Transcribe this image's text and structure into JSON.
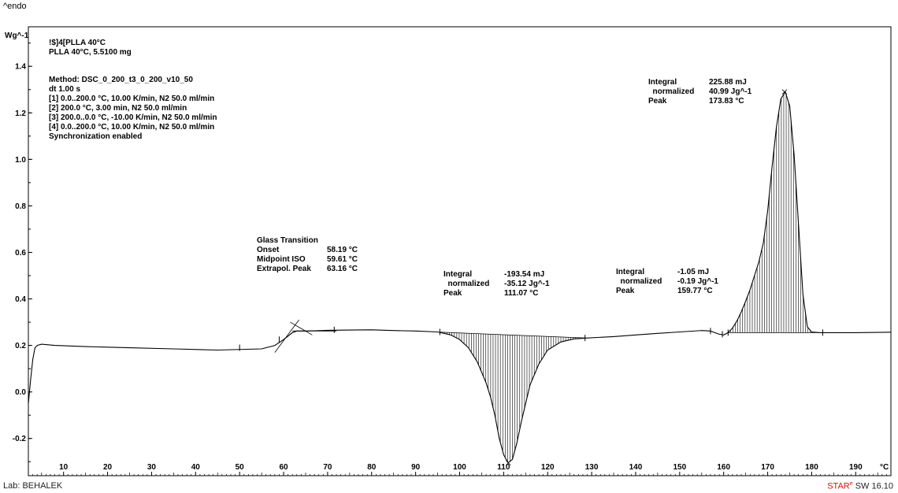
{
  "header": {
    "endo_label": "^endo"
  },
  "footer": {
    "lab": "Lab: BEHALEK",
    "brand": "STAR",
    "brand_mark": "e",
    "version": " SW 16.10"
  },
  "chart_data": {
    "type": "line",
    "xlabel": "°C",
    "ylabel": "Wg^-1",
    "xlim": [
      2,
      198
    ],
    "ylim": [
      -0.36,
      1.57
    ],
    "x_ticks": [
      10,
      20,
      30,
      40,
      50,
      60,
      70,
      80,
      90,
      100,
      110,
      120,
      130,
      140,
      150,
      160,
      170,
      180,
      190
    ],
    "y_ticks": [
      -0.2,
      0.0,
      0.2,
      0.4,
      0.6,
      0.8,
      1.0,
      1.2,
      1.4
    ],
    "y_tick_labels": [
      "-0.2",
      "0.0",
      "0.2",
      "0.4",
      "0.6",
      "0.8",
      "1.0",
      "1.2",
      "1.4"
    ],
    "grid": false,
    "curve_color": "#000000",
    "series": [
      {
        "x": [
          2.0,
          2.5,
          3.0,
          3.5,
          4.0,
          5,
          8,
          15,
          25,
          35,
          45,
          55,
          58,
          60,
          61,
          62,
          63,
          64,
          65,
          67,
          70,
          75,
          80,
          85,
          90,
          95,
          98,
          100,
          102,
          104,
          106,
          107,
          108,
          109,
          110,
          111,
          112,
          113,
          114,
          115,
          116,
          118,
          120,
          123,
          126,
          129,
          135,
          140,
          145,
          150,
          155,
          157,
          158,
          159,
          160,
          161,
          162,
          163,
          164,
          165,
          166,
          167,
          168,
          169,
          170,
          171,
          172,
          173,
          174,
          175,
          176,
          177,
          178,
          179,
          180,
          182,
          185,
          190,
          198
        ],
        "y": [
          -0.05,
          0.05,
          0.14,
          0.19,
          0.2,
          0.205,
          0.2,
          0.195,
          0.19,
          0.185,
          0.18,
          0.185,
          0.2,
          0.225,
          0.24,
          0.255,
          0.262,
          0.262,
          0.262,
          0.263,
          0.265,
          0.266,
          0.267,
          0.264,
          0.262,
          0.258,
          0.245,
          0.225,
          0.19,
          0.13,
          0.04,
          -0.02,
          -0.1,
          -0.2,
          -0.27,
          -0.305,
          -0.29,
          -0.22,
          -0.13,
          -0.05,
          0.03,
          0.12,
          0.18,
          0.215,
          0.228,
          0.232,
          0.238,
          0.245,
          0.252,
          0.258,
          0.264,
          0.262,
          0.255,
          0.248,
          0.245,
          0.255,
          0.275,
          0.305,
          0.345,
          0.39,
          0.44,
          0.5,
          0.56,
          0.64,
          0.78,
          0.97,
          1.14,
          1.26,
          1.29,
          1.23,
          1.02,
          0.72,
          0.42,
          0.28,
          0.258,
          0.255,
          0.255,
          0.255,
          0.257
        ]
      }
    ],
    "shaded_regions": [
      {
        "from": 95.5,
        "to": 128.5,
        "baseline": [
          0.257,
          0.232
        ]
      },
      {
        "from": 161,
        "to": 182.5,
        "baseline": [
          0.255,
          0.255
        ]
      }
    ],
    "tick_marks": [
      {
        "x": 50,
        "y": 0.19
      },
      {
        "x": 59,
        "y": 0.225
      },
      {
        "x": 71.5,
        "y": 0.267
      },
      {
        "x": 95.5,
        "y": 0.258
      },
      {
        "x": 128.5,
        "y": 0.232
      },
      {
        "x": 157,
        "y": 0.262
      },
      {
        "x": 159.7,
        "y": 0.248
      },
      {
        "x": 161,
        "y": 0.255
      },
      {
        "x": 182.5,
        "y": 0.255
      }
    ],
    "peak_marks": [
      {
        "x": 111.07,
        "y": -0.305
      },
      {
        "x": 173.83,
        "y": 1.29
      }
    ],
    "glass_transition_lines": [
      {
        "x1": 58,
        "y1": 0.17,
        "x2": 63.5,
        "y2": 0.31
      },
      {
        "x1": 61.5,
        "y1": 0.3,
        "x2": 66.5,
        "y2": 0.245
      },
      {
        "x1": 62,
        "y1": 0.262,
        "x2": 72,
        "y2": 0.262
      }
    ],
    "annotations": {
      "sample_block": [
        "!$]4[PLLA 40°C",
        "PLLA 40°C, 5.5100 mg"
      ],
      "method_block": [
        "Method: DSC_0_200_t3_0_200_v10_50",
        "dt 1.00 s",
        "[1] 0.0..200.0 °C, 10.00 K/min, N2 50.0 ml/min",
        "[2] 200.0 °C, 3.00 min, N2 50.0 ml/min",
        "[3] 200.0..0.0 °C, -10.00 K/min, N2 50.0 ml/min",
        "[4] 0.0..200.0 °C, 10.00 K/min, N2 50.0 ml/min",
        "Synchronization enabled"
      ],
      "glass_transition": {
        "title": "Glass Transition",
        "rows": [
          {
            "label": "Onset",
            "value": "58.19 °C"
          },
          {
            "label": "Midpoint ISO",
            "value": "59.61 °C"
          },
          {
            "label": "Extrapol. Peak",
            "value": "63.16 °C"
          }
        ]
      },
      "integral_cold": [
        {
          "label": "Integral",
          "value": "-193.54 mJ"
        },
        {
          "label": "  normalized",
          "value": "-35.12 Jg^-1"
        },
        {
          "label": "Peak",
          "value": "111.07 °C"
        }
      ],
      "integral_small": [
        {
          "label": "Integral",
          "value": "-1.05 mJ"
        },
        {
          "label": "  normalized",
          "value": "-0.19 Jg^-1"
        },
        {
          "label": "Peak",
          "value": "159.77 °C"
        }
      ],
      "integral_melt": [
        {
          "label": "Integral",
          "value": "225.88 mJ"
        },
        {
          "label": "  normalized",
          "value": "40.99 Jg^-1"
        },
        {
          "label": "Peak",
          "value": "173.83 °C"
        }
      ]
    }
  }
}
